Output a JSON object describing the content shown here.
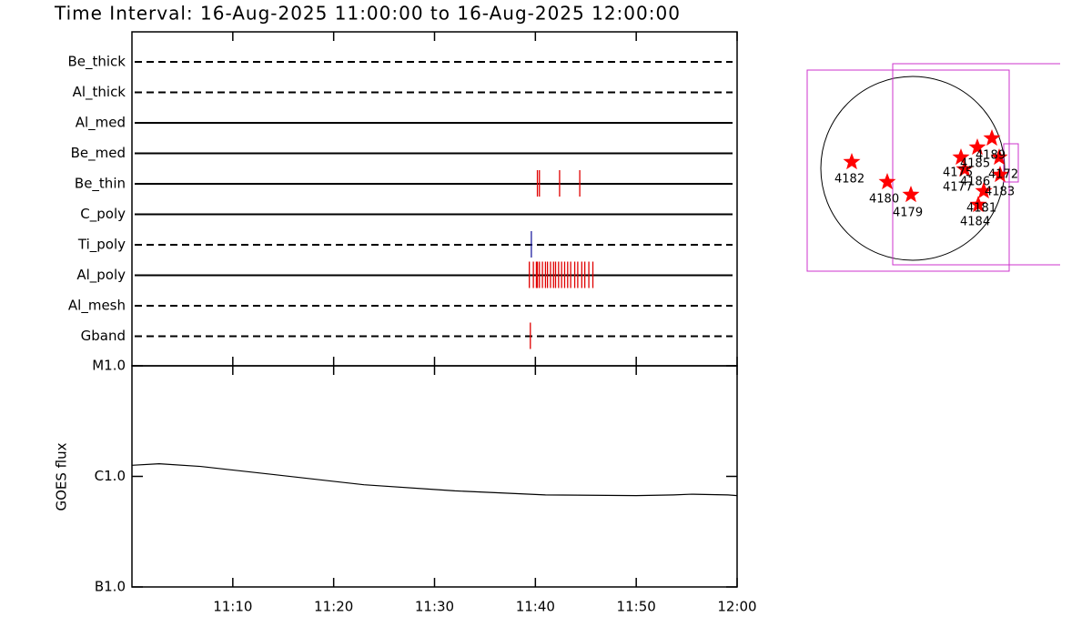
{
  "title": "Time Interval: 16-Aug-2025 11:00:00 to 16-Aug-2025 12:00:00",
  "chart_data": [
    {
      "type": "event",
      "xlim": [
        0,
        60
      ],
      "xticks": [
        {
          "value": 10,
          "label": "11:10"
        },
        {
          "value": 20,
          "label": "11:20"
        },
        {
          "value": 30,
          "label": "11:30"
        },
        {
          "value": 40,
          "label": "11:40"
        },
        {
          "value": 50,
          "label": "11:50"
        },
        {
          "value": 60,
          "label": "12:00"
        }
      ],
      "series": [
        {
          "name": "Be_thick",
          "line": "dashed",
          "color": "#e00000",
          "events": []
        },
        {
          "name": "Al_thick",
          "line": "dashed",
          "color": "#e00000",
          "events": []
        },
        {
          "name": "Al_med",
          "line": "solid",
          "color": "#e00000",
          "events": []
        },
        {
          "name": "Be_med",
          "line": "solid",
          "color": "#e00000",
          "events": []
        },
        {
          "name": "Be_thin",
          "line": "solid",
          "color": "#e00000",
          "events": [
            40.2,
            40.4,
            42.4,
            44.4
          ]
        },
        {
          "name": "C_poly",
          "line": "solid",
          "color": "#e00000",
          "events": []
        },
        {
          "name": "Ti_poly",
          "line": "dashed",
          "color": "#2020a0",
          "events": [
            39.6
          ]
        },
        {
          "name": "Al_poly",
          "line": "solid",
          "color": "#e00000",
          "events": [
            39.4,
            39.8,
            40.1,
            40.2,
            40.4,
            40.7,
            41.0,
            41.2,
            41.5,
            41.8,
            42.0,
            42.3,
            42.6,
            42.9,
            43.2,
            43.5,
            43.9,
            44.2,
            44.6,
            44.9,
            45.3,
            45.7
          ]
        },
        {
          "name": "Al_mesh",
          "line": "dashed",
          "color": "#e00000",
          "events": []
        },
        {
          "name": "Gband",
          "line": "dashed",
          "color": "#e00000",
          "events": [
            39.5
          ]
        }
      ]
    },
    {
      "type": "line",
      "ylabel": "GOES flux",
      "log_scale": true,
      "color": "#000000",
      "xlim": [
        0,
        60
      ],
      "ylim": [
        1e-07,
        1e-05
      ],
      "yticks": [
        {
          "value": 1e-07,
          "label": "B1.0"
        },
        {
          "value": 1e-06,
          "label": "C1.0"
        },
        {
          "value": 1e-05,
          "label": "M1.0"
        }
      ],
      "x": [
        0,
        2.7,
        6.8,
        14,
        23,
        32,
        41,
        50,
        53.7,
        55.5,
        59.1,
        60
      ],
      "values": [
        1.26e-06,
        1.3e-06,
        1.23e-06,
        1.04e-06,
        8.4e-07,
        7.4e-07,
        6.8e-07,
        6.7e-07,
        6.8e-07,
        6.9e-07,
        6.8e-07,
        6.7e-07
      ]
    }
  ],
  "map": {
    "regions": [
      "4182",
      "4180",
      "4179",
      "4175",
      "4177",
      "4185",
      "4186",
      "4189",
      "4172",
      "4183",
      "4181",
      "4184"
    ]
  }
}
